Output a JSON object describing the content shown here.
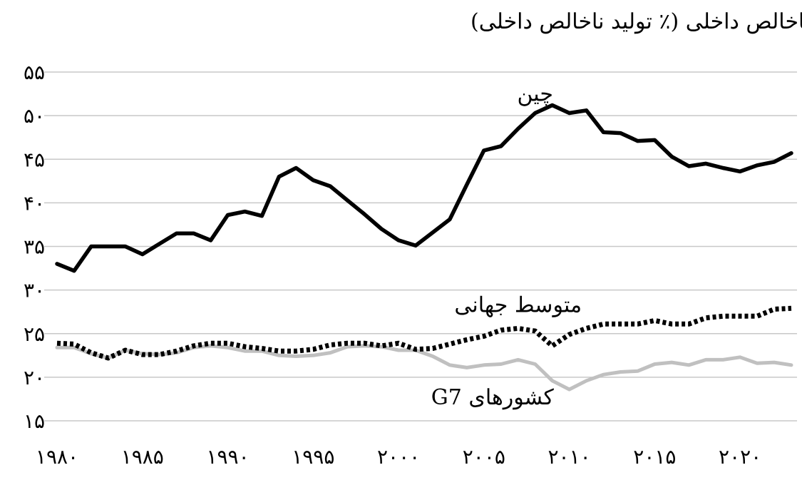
{
  "chart_data": {
    "type": "line",
    "title": "پس‌انداز ناخالص داخلی (٪ تولید ناخالص داخلی)",
    "xlabel": "",
    "ylabel": "",
    "xlim": [
      1980,
      2023
    ],
    "ylim": [
      15,
      55
    ],
    "grid": true,
    "legend": "none",
    "y_ticks": [
      15,
      20,
      25,
      30,
      35,
      40,
      45,
      50,
      55
    ],
    "y_tick_labels": [
      "۱۵",
      "۲۰",
      "۲۵",
      "۳۰",
      "۳۵",
      "۴۰",
      "۴۵",
      "۵۰",
      "۵۵"
    ],
    "x_ticks": [
      1980,
      1985,
      1990,
      1995,
      2000,
      2005,
      2010,
      2015,
      2020
    ],
    "x_tick_labels": [
      "۱۹۸۰",
      "۱۹۸۵",
      "۱۹۹۰",
      "۱۹۹۵",
      "۲۰۰۰",
      "۲۰۰۵",
      "۲۰۱۰",
      "۲۰۱۵",
      "۲۰۲۰"
    ],
    "x": [
      1980,
      1981,
      1982,
      1983,
      1984,
      1985,
      1986,
      1987,
      1988,
      1989,
      1990,
      1991,
      1992,
      1993,
      1994,
      1995,
      1996,
      1997,
      1998,
      1999,
      2000,
      2001,
      2002,
      2003,
      2004,
      2005,
      2006,
      2007,
      2008,
      2009,
      2010,
      2011,
      2012,
      2013,
      2014,
      2015,
      2016,
      2017,
      2018,
      2019,
      2020,
      2021,
      2022,
      2023
    ],
    "series": [
      {
        "name": "چین",
        "color": "#000000",
        "style": "solid",
        "label_x": 2008.0,
        "label_y": 52.5,
        "values": [
          33.0,
          32.2,
          35.0,
          35.0,
          35.0,
          34.1,
          35.3,
          36.5,
          36.5,
          35.7,
          38.6,
          39.0,
          38.5,
          43.0,
          44.0,
          42.6,
          41.9,
          40.3,
          38.7,
          37.0,
          35.7,
          35.1,
          36.6,
          38.1,
          42.1,
          46.0,
          46.5,
          48.5,
          50.3,
          51.2,
          50.3,
          50.6,
          48.1,
          48.0,
          47.1,
          47.2,
          45.3,
          44.2,
          44.5,
          44.0,
          43.6,
          44.3,
          44.7,
          45.7
        ]
      },
      {
        "name": "متوسط جهانی",
        "color": "#000000",
        "style": "dotted",
        "label_x": 2007.0,
        "label_y": 28.3,
        "values": [
          23.9,
          23.8,
          22.8,
          22.2,
          23.1,
          22.6,
          22.6,
          23.0,
          23.6,
          23.9,
          23.9,
          23.5,
          23.3,
          23.0,
          23.0,
          23.2,
          23.7,
          23.9,
          23.9,
          23.6,
          23.9,
          23.2,
          23.3,
          23.8,
          24.3,
          24.7,
          25.4,
          25.6,
          25.3,
          23.6,
          24.9,
          25.6,
          26.1,
          26.1,
          26.1,
          26.5,
          26.1,
          26.1,
          26.8,
          27.0,
          27.0,
          27.0,
          27.8,
          27.9
        ]
      },
      {
        "name": "کشورهای G7",
        "color": "#c0c0c0",
        "style": "solid",
        "label_x": 2005.5,
        "label_y": 17.7,
        "values": [
          23.4,
          23.4,
          22.7,
          22.2,
          23.1,
          22.7,
          22.6,
          22.8,
          23.4,
          23.6,
          23.4,
          23.0,
          23.0,
          22.5,
          22.4,
          22.5,
          22.8,
          23.5,
          23.6,
          23.5,
          23.1,
          23.1,
          22.4,
          21.4,
          21.1,
          21.4,
          21.5,
          22.0,
          21.5,
          19.6,
          18.6,
          19.6,
          20.3,
          20.6,
          20.7,
          21.5,
          21.7,
          21.4,
          22.0,
          22.0,
          22.3,
          21.6,
          21.7,
          21.4
        ]
      }
    ]
  }
}
